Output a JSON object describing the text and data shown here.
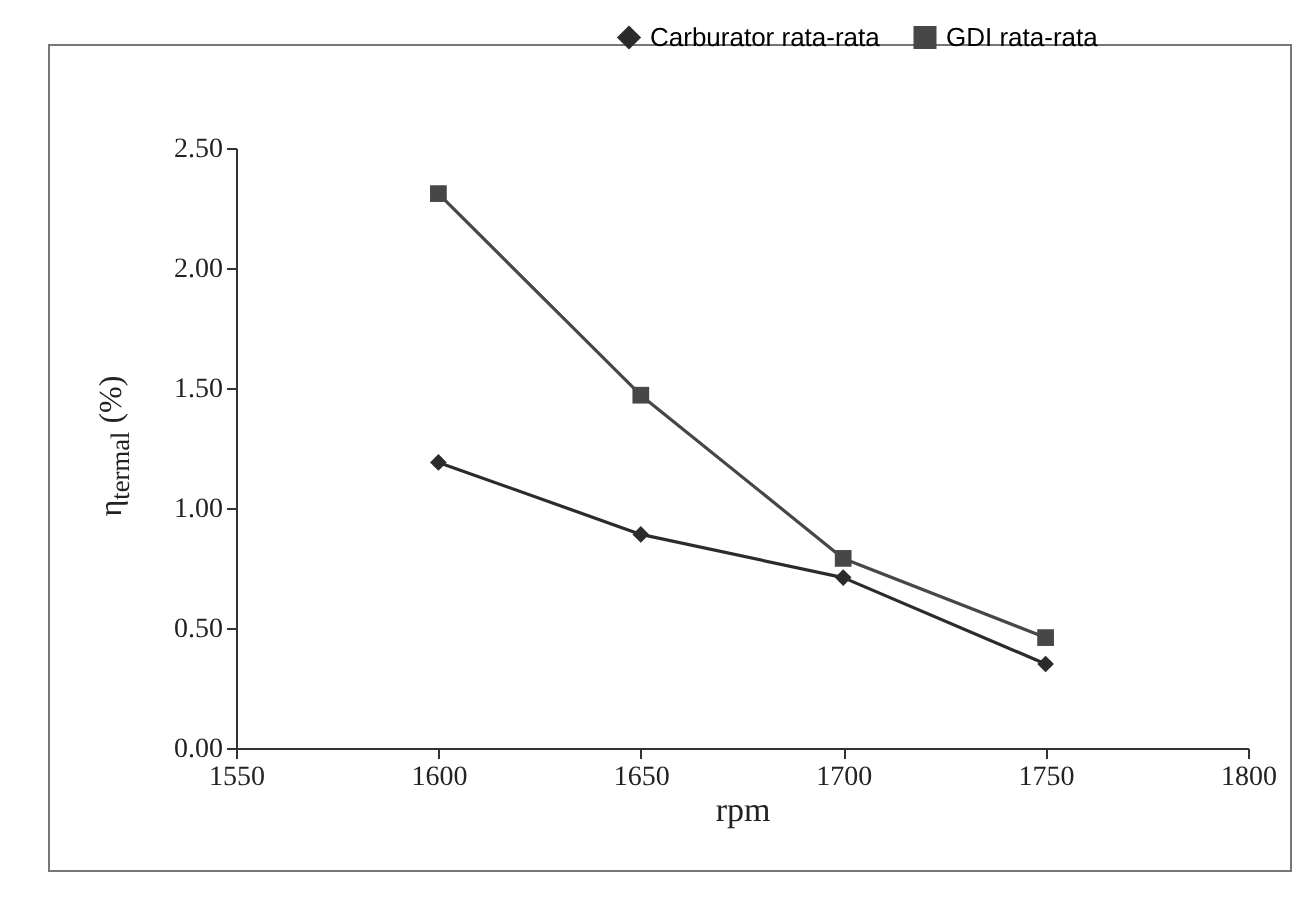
{
  "chart_data": {
    "type": "line",
    "xlabel": "rpm",
    "ylabel": "η$_{termal}$ (%)",
    "x": [
      1600,
      1650,
      1700,
      1750
    ],
    "series": [
      {
        "name": "Carburator rata-rata",
        "color": "#2b2b2b",
        "marker": "diamond",
        "values": [
          1.19,
          0.89,
          0.71,
          0.35
        ]
      },
      {
        "name": "GDI rata-rata",
        "color": "#474747",
        "marker": "square",
        "values": [
          2.31,
          1.47,
          0.79,
          0.46
        ]
      }
    ],
    "xlim": [
      1550,
      1800
    ],
    "xticks": [
      1550,
      1600,
      1650,
      1700,
      1750,
      1800
    ],
    "ylim": [
      0,
      2.5
    ],
    "yticks": [
      {
        "value": 0,
        "label": "0.00"
      },
      {
        "value": 0.5,
        "label": "0.50"
      },
      {
        "value": 1,
        "label": "1.00"
      },
      {
        "value": 1.5,
        "label": "1.50"
      },
      {
        "value": 2,
        "label": "2.00"
      },
      {
        "value": 2.5,
        "label": "2.50"
      }
    ],
    "grid": false,
    "legend": "top right",
    "line_style": "solid"
  }
}
